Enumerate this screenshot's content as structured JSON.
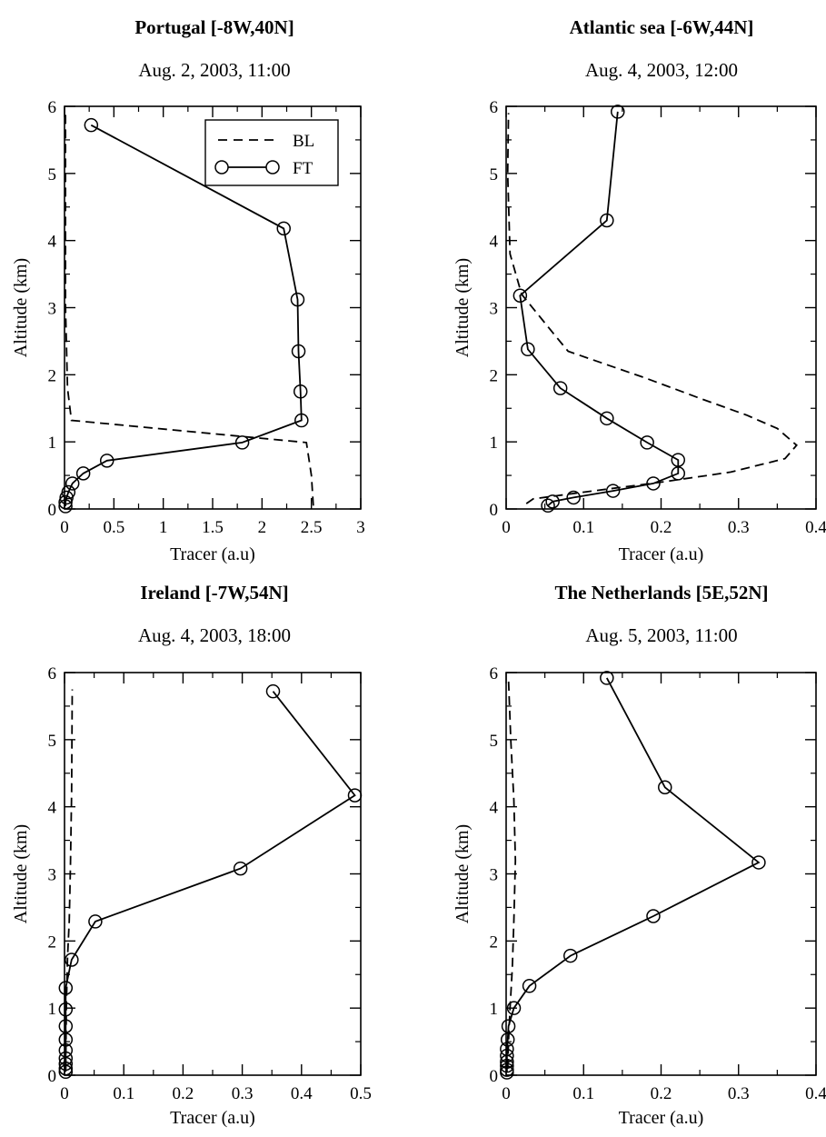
{
  "colors": {
    "line": "#000000",
    "background": "#ffffff"
  },
  "chart_data": [
    {
      "type": "line",
      "title": "Portugal [-8W,40N]",
      "subtitle": "Aug. 2, 2003, 11:00",
      "xlabel": "Tracer (a.u)",
      "ylabel": "Altitude (km)",
      "xlim": [
        0,
        3
      ],
      "ylim": [
        0,
        6
      ],
      "xticks": [
        "0",
        "0.5",
        "1",
        "1.5",
        "2",
        "2.5",
        "3"
      ],
      "xtick_values": [
        0,
        0.5,
        1,
        1.5,
        2,
        2.5,
        3
      ],
      "yticks": [
        "0",
        "1",
        "2",
        "3",
        "4",
        "5",
        "6"
      ],
      "ytick_values": [
        0,
        1,
        2,
        3,
        4,
        5,
        6
      ],
      "legend": {
        "position": "top-right",
        "entries": [
          "BL",
          "FT"
        ]
      },
      "series": [
        {
          "name": "BL",
          "style": "dashed",
          "x": [
            2.52,
            2.5,
            2.45,
            0.07,
            0.03,
            0.01,
            0.01
          ],
          "y": [
            0.05,
            0.5,
            0.99,
            1.32,
            1.8,
            3.0,
            5.9
          ]
        },
        {
          "name": "FT",
          "style": "solid-circles",
          "x": [
            0.01,
            0.01,
            0.02,
            0.04,
            0.08,
            0.19,
            0.43,
            1.8,
            2.4,
            2.39,
            2.37,
            2.36,
            2.22,
            0.27
          ],
          "y": [
            0.04,
            0.1,
            0.17,
            0.25,
            0.38,
            0.53,
            0.72,
            0.99,
            1.32,
            1.75,
            2.35,
            3.12,
            4.18,
            5.72
          ]
        }
      ]
    },
    {
      "type": "line",
      "title": "Atlantic sea [-6W,44N]",
      "subtitle": "Aug. 4, 2003, 12:00",
      "xlabel": "Tracer (a.u)",
      "ylabel": "Altitude (km)",
      "xlim": [
        0,
        0.4
      ],
      "ylim": [
        0,
        6
      ],
      "xticks": [
        "0",
        "0.1",
        "0.2",
        "0.3",
        "0.4"
      ],
      "xtick_values": [
        0,
        0.1,
        0.2,
        0.3,
        0.4
      ],
      "yticks": [
        "0",
        "1",
        "2",
        "3",
        "4",
        "5",
        "6"
      ],
      "ytick_values": [
        0,
        1,
        2,
        3,
        4,
        5,
        6
      ],
      "series": [
        {
          "name": "BL",
          "style": "dashed",
          "x": [
            0.026,
            0.035,
            0.1,
            0.2,
            0.29,
            0.36,
            0.375,
            0.35,
            0.31,
            0.25,
            0.18,
            0.08,
            0.055,
            0.02,
            0.005,
            0.002,
            0.003
          ],
          "y": [
            0.08,
            0.15,
            0.25,
            0.4,
            0.55,
            0.75,
            0.95,
            1.2,
            1.4,
            1.65,
            1.95,
            2.35,
            2.7,
            3.2,
            3.8,
            5.0,
            5.9
          ]
        },
        {
          "name": "FT",
          "style": "solid-circles",
          "x": [
            0.054,
            0.06,
            0.087,
            0.138,
            0.19,
            0.222,
            0.222,
            0.182,
            0.13,
            0.07,
            0.028,
            0.018,
            0.13,
            0.144
          ],
          "y": [
            0.05,
            0.11,
            0.17,
            0.27,
            0.38,
            0.53,
            0.73,
            0.99,
            1.35,
            1.8,
            2.38,
            3.18,
            4.3,
            5.92
          ]
        }
      ]
    },
    {
      "type": "line",
      "title": "Ireland [-7W,54N]",
      "subtitle": "Aug. 4, 2003, 18:00",
      "xlabel": "Tracer (a.u)",
      "ylabel": "Altitude (km)",
      "xlim": [
        0,
        0.5
      ],
      "ylim": [
        0,
        6
      ],
      "xticks": [
        "0",
        "0.1",
        "0.2",
        "0.3",
        "0.4",
        "0.5"
      ],
      "xtick_values": [
        0,
        0.1,
        0.2,
        0.3,
        0.4,
        0.5
      ],
      "yticks": [
        "0",
        "1",
        "2",
        "3",
        "4",
        "5",
        "6"
      ],
      "ytick_values": [
        0,
        1,
        2,
        3,
        4,
        5,
        6
      ],
      "series": [
        {
          "name": "BL",
          "style": "dashed",
          "x": [
            0.002,
            0.003,
            0.005,
            0.008,
            0.01,
            0.012,
            0.013
          ],
          "y": [
            0.1,
            1.0,
            1.75,
            2.3,
            3.1,
            4.2,
            5.75
          ]
        },
        {
          "name": "FT",
          "style": "solid-circles",
          "x": [
            0.002,
            0.002,
            0.002,
            0.002,
            0.002,
            0.002,
            0.002,
            0.002,
            0.002,
            0.012,
            0.052,
            0.297,
            0.49,
            0.352
          ],
          "y": [
            0.05,
            0.1,
            0.17,
            0.25,
            0.37,
            0.53,
            0.73,
            0.98,
            1.3,
            1.72,
            2.29,
            3.08,
            4.17,
            5.72
          ]
        }
      ]
    },
    {
      "type": "line",
      "title": "The Netherlands [5E,52N]",
      "subtitle": "Aug. 5, 2003, 11:00",
      "xlabel": "Tracer (a.u)",
      "ylabel": "Altitude (km)",
      "xlim": [
        0,
        0.4
      ],
      "ylim": [
        0,
        6
      ],
      "xticks": [
        "0",
        "0.1",
        "0.2",
        "0.3",
        "0.4"
      ],
      "xtick_values": [
        0,
        0.1,
        0.2,
        0.3,
        0.4
      ],
      "yticks": [
        "0",
        "1",
        "2",
        "3",
        "4",
        "5",
        "6"
      ],
      "ytick_values": [
        0,
        1,
        2,
        3,
        4,
        5,
        6
      ],
      "series": [
        {
          "name": "BL",
          "style": "dashed",
          "x": [
            0.002,
            0.003,
            0.005,
            0.008,
            0.01,
            0.012,
            0.01,
            0.006,
            0.003
          ],
          "y": [
            0.1,
            0.5,
            1.0,
            1.6,
            2.3,
            3.2,
            4.1,
            5.0,
            5.9
          ]
        },
        {
          "name": "FT",
          "style": "solid-circles",
          "x": [
            0.001,
            0.001,
            0.001,
            0.001,
            0.001,
            0.001,
            0.002,
            0.003,
            0.01,
            0.03,
            0.083,
            0.19,
            0.326,
            0.205,
            0.13
          ],
          "y": [
            0.04,
            0.08,
            0.14,
            0.2,
            0.29,
            0.39,
            0.53,
            0.73,
            1.0,
            1.33,
            1.78,
            2.37,
            3.17,
            4.29,
            5.92
          ]
        }
      ]
    }
  ]
}
